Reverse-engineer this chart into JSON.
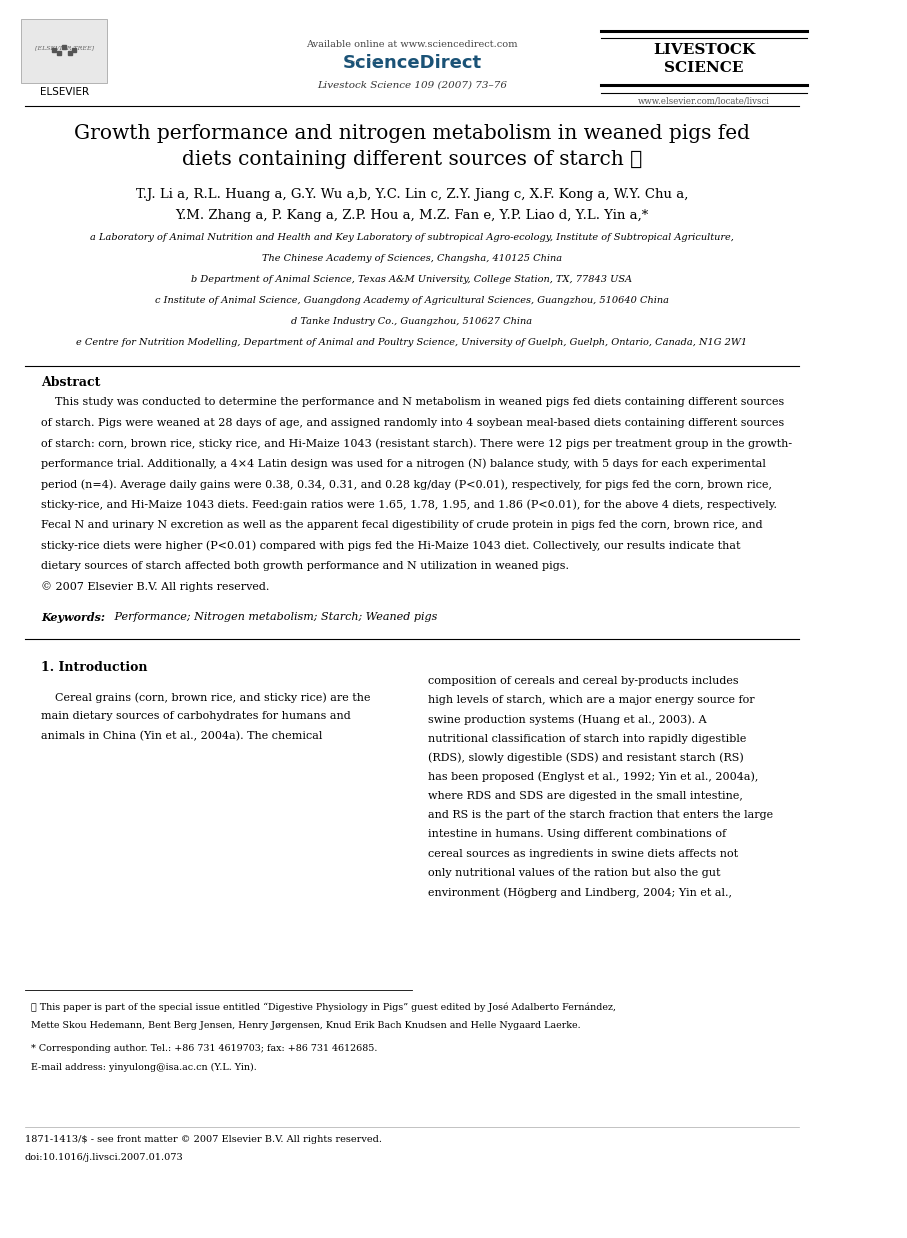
{
  "bg_color": "#ffffff",
  "page_width": 9.07,
  "page_height": 12.38,
  "header": {
    "available_online": "Available online at www.sciencedirect.com",
    "journal_info": "Livestock Science 109 (2007) 73–76",
    "journal_name_line1": "LIVESTOCK",
    "journal_name_line2": "SCIENCE",
    "website": "www.elsevier.com/locate/livsci"
  },
  "title": "Growth performance and nitrogen metabolism in weaned pigs fed\ndiets containing different sources of starch ☆",
  "authors_line1": "T.J. Li a, R.L. Huang a, G.Y. Wu a,b, Y.C. Lin c, Z.Y. Jiang c, X.F. Kong a, W.Y. Chu a,",
  "authors_line2": "Y.M. Zhang a, P. Kang a, Z.P. Hou a, M.Z. Fan e, Y.P. Liao d, Y.L. Yin a,*",
  "affiliations": [
    "a Laboratory of Animal Nutrition and Health and Key Laboratory of subtropical Agro-ecology, Institute of Subtropical Agriculture,",
    "The Chinese Academy of Sciences, Changsha, 410125 China",
    "b Department of Animal Science, Texas A&M University, College Station, TX, 77843 USA",
    "c Institute of Animal Science, Guangdong Academy of Agricultural Sciences, Guangzhou, 510640 China",
    "d Tanke Industry Co., Guangzhou, 510627 China",
    "e Centre for Nutrition Modelling, Department of Animal and Poultry Science, University of Guelph, Guelph, Ontario, Canada, N1G 2W1"
  ],
  "abstract_title": "Abstract",
  "abstract_text": "    This study was conducted to determine the performance and N metabolism in weaned pigs fed diets containing different sources\nof starch. Pigs were weaned at 28 days of age, and assigned randomly into 4 soybean meal-based diets containing different sources\nof starch: corn, brown rice, sticky rice, and Hi-Maize 1043 (resistant starch). There were 12 pigs per treatment group in the growth-\nperformance trial. Additionally, a 4×4 Latin design was used for a nitrogen (N) balance study, with 5 days for each experimental\nperiod (n=4). Average daily gains were 0.38, 0.34, 0.31, and 0.28 kg/day (P<0.01), respectively, for pigs fed the corn, brown rice,\nsticky-rice, and Hi-Maize 1043 diets. Feed:gain ratios were 1.65, 1.78, 1.95, and 1.86 (P<0.01), for the above 4 diets, respectively.\nFecal N and urinary N excretion as well as the apparent fecal digestibility of crude protein in pigs fed the corn, brown rice, and\nsticky-rice diets were higher (P<0.01) compared with pigs fed the Hi-Maize 1043 diet. Collectively, our results indicate that\ndietary sources of starch affected both growth performance and N utilization in weaned pigs.\n© 2007 Elsevier B.V. All rights reserved.",
  "keywords_label": "Keywords:",
  "keywords_text": " Performance; Nitrogen metabolism; Starch; Weaned pigs",
  "section1_title": "1. Introduction",
  "section1_col1_lines": [
    "    Cereal grains (corn, brown rice, and sticky rice) are the",
    "main dietary sources of carbohydrates for humans and",
    "animals in China (Yin et al., 2004a). The chemical"
  ],
  "section1_col2_lines": [
    "composition of cereals and cereal by-products includes",
    "high levels of starch, which are a major energy source for",
    "swine production systems (Huang et al., 2003). A",
    "nutritional classification of starch into rapidly digestible",
    "(RDS), slowly digestible (SDS) and resistant starch (RS)",
    "has been proposed (Englyst et al., 1992; Yin et al., 2004a),",
    "where RDS and SDS are digested in the small intestine,",
    "and RS is the part of the starch fraction that enters the large",
    "intestine in humans. Using different combinations of",
    "cereal sources as ingredients in swine diets affects not",
    "only nutritional values of the ration but also the gut",
    "environment (Högberg and Lindberg, 2004; Yin et al.,"
  ],
  "footnote_star_lines": [
    "  ☆ This paper is part of the special issue entitled “Digestive Physiology in Pigs” guest edited by José Adalberto Fernández,",
    "  Mette Skou Hedemann, Bent Berg Jensen, Henry Jørgensen, Knud Erik Bach Knudsen and Helle Nygaard Laerke."
  ],
  "footnote_corresponding": "  * Corresponding author. Tel.: +86 731 4619703; fax: +86 731 4612685.",
  "footnote_email": "  E-mail address: yinyulong@isa.ac.cn (Y.L. Yin).",
  "footer_issn": "1871-1413/$ - see front matter © 2007 Elsevier B.V. All rights reserved.",
  "footer_doi": "doi:10.1016/j.livsci.2007.01.073"
}
